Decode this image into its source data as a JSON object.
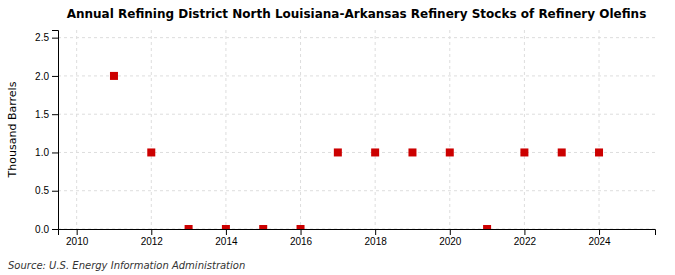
{
  "chart_data": {
    "type": "scatter",
    "title": "Annual Refining District North Louisiana-Arkansas Refinery Stocks of Refinery Olefins",
    "ylabel": "Thousand Barrels",
    "annotations": [
      "Source: U.S. Energy Information Administration"
    ],
    "x": [
      2011,
      2012,
      2013,
      2014,
      2015,
      2016,
      2017,
      2018,
      2019,
      2020,
      2021,
      2022,
      2023,
      2024
    ],
    "values": [
      2.0,
      1.0,
      0.0,
      0.0,
      0.0,
      0.0,
      1.0,
      1.0,
      1.0,
      1.0,
      0.0,
      1.0,
      1.0,
      1.0
    ],
    "color": "#cc0000",
    "marker": "square",
    "xlim": [
      2009.5,
      2025.5
    ],
    "ylim": [
      0.0,
      2.6
    ],
    "xticks": [
      2010,
      2012,
      2014,
      2016,
      2018,
      2020,
      2022,
      2024
    ],
    "yticks": [
      {
        "value": 0.0,
        "label": "0.0"
      },
      0.5,
      {
        "value": 1.0,
        "label": "1.0"
      },
      1.5,
      {
        "value": 2.0,
        "label": "2.0"
      },
      2.5
    ],
    "grid": true
  }
}
